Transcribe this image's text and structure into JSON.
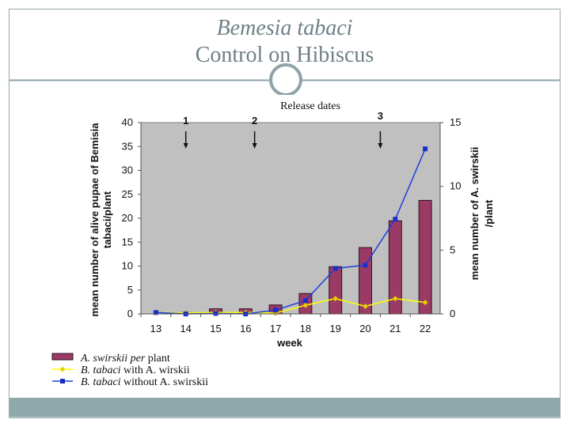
{
  "slide": {
    "title_line_1": "Bemesia tabaci",
    "title_line_2": "Control on Hibiscus"
  },
  "colors": {
    "bar_fill": "#9c3a66",
    "bar_stroke": "#2a1020",
    "plot_bg": "#c0c0c0",
    "with_line": "#ffff00",
    "with_marker": "#e8d000",
    "without_line": "#1f3fd8",
    "without_marker": "#1a2fc8"
  },
  "chart_data": {
    "type": "bar",
    "title": "Release dates",
    "xlabel": "week",
    "ylabel_left_line1": "mean number of alive pupae of Bemisia",
    "ylabel_left_line2": "tabaci/plant",
    "ylabel_right_line1": "mean number of A. swirskii",
    "ylabel_right_line2": "/plant",
    "categories": [
      "13",
      "14",
      "15",
      "16",
      "17",
      "18",
      "19",
      "20",
      "21",
      "22"
    ],
    "ylim_left": [
      0,
      40
    ],
    "yticks_left": [
      0,
      5,
      10,
      15,
      20,
      25,
      30,
      35,
      40
    ],
    "ylim_right": [
      0,
      15
    ],
    "yticks_right": [
      0,
      5,
      10,
      15
    ],
    "grid": "off",
    "legend_position": "bottom-left",
    "release_markers": [
      {
        "label": "1",
        "category": "14"
      },
      {
        "label": "2",
        "category": "16.3"
      },
      {
        "label": "3",
        "category": "20.5"
      }
    ],
    "series": [
      {
        "name": "A. swirskii per plant",
        "legend_italic": "A. swirskii per",
        "legend_rest": " plant",
        "type": "bar",
        "axis": "right",
        "values": [
          0,
          0.1,
          0.4,
          0.4,
          0.7,
          1.6,
          3.7,
          5.2,
          7.3,
          8.9
        ]
      },
      {
        "name": "B. tabaci with A. wirskii",
        "legend_italic": "B. tabaci",
        "legend_rest": " with A. wirskii",
        "type": "line",
        "axis": "left",
        "values": [
          0.3,
          0.2,
          0.3,
          0.3,
          0.2,
          1.8,
          3.2,
          1.6,
          3.2,
          2.4
        ]
      },
      {
        "name": "B. tabaci without A. swirskii",
        "legend_italic": "B. tabaci",
        "legend_rest": " without A. swirskii",
        "type": "line",
        "axis": "left",
        "values": [
          0.3,
          0,
          0.1,
          0,
          0.8,
          2.8,
          9.5,
          10.2,
          19.8,
          34.5
        ]
      }
    ]
  }
}
